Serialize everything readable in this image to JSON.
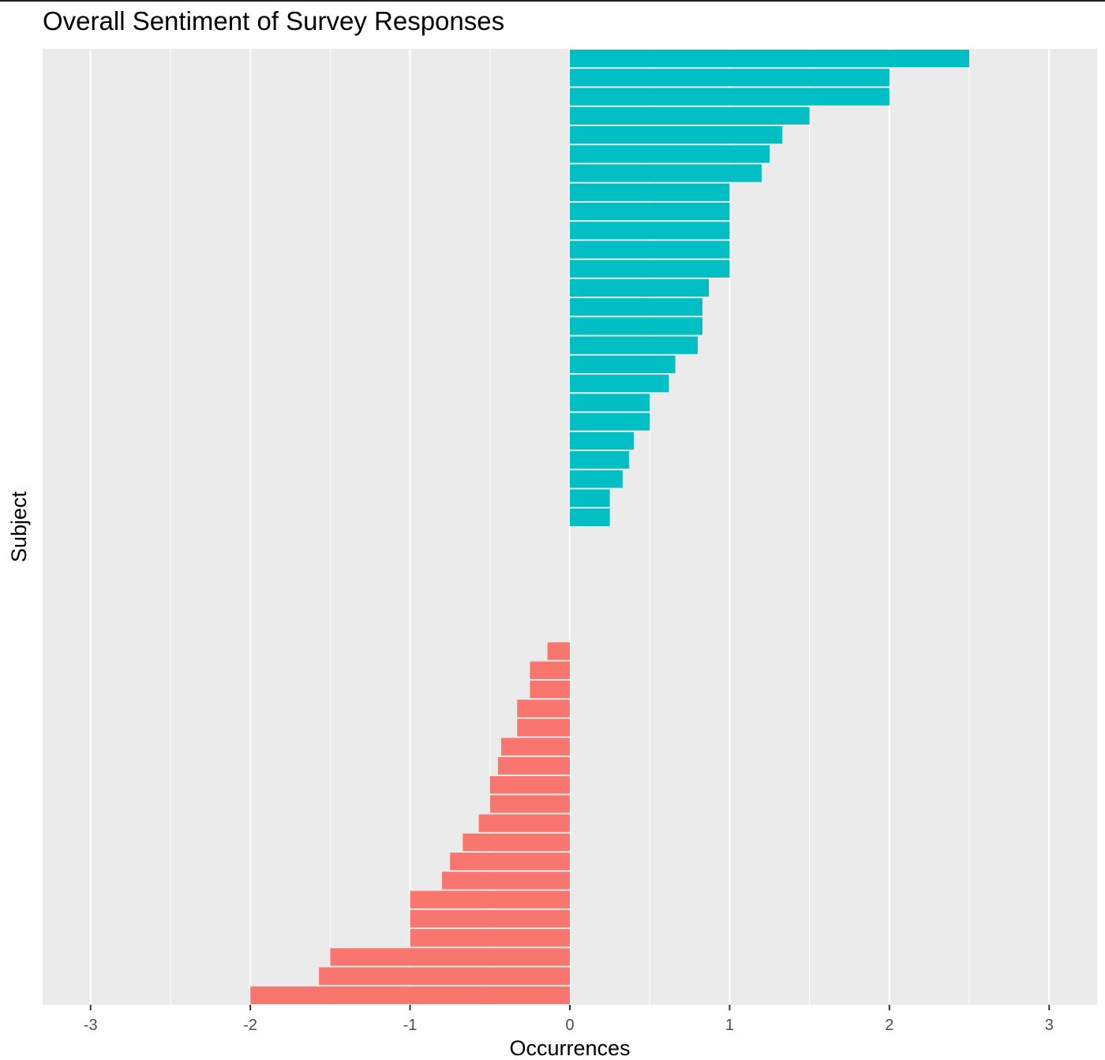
{
  "chart_data": {
    "type": "bar",
    "orientation": "horizontal",
    "title": "Overall Sentiment of Survey Responses",
    "xlabel": "Occurrences",
    "ylabel": "Subject",
    "xlim": [
      -3.3,
      3.3
    ],
    "xticks": [
      -3,
      -2,
      -1,
      0,
      1,
      2,
      3
    ],
    "xtick_labels": [
      "-3",
      "-2",
      "-1",
      "0",
      "1",
      "2",
      "3"
    ],
    "grid": true,
    "legend": "none",
    "colors": {
      "positive": "#00BFC4",
      "negative": "#F8766D",
      "panel": "#EBEBEB",
      "gridline": "#FFFFFF"
    },
    "values": [
      2.5,
      2.0,
      2.0,
      1.5,
      1.33,
      1.25,
      1.2,
      1.0,
      1.0,
      1.0,
      1.0,
      1.0,
      0.87,
      0.83,
      0.83,
      0.8,
      0.66,
      0.62,
      0.5,
      0.5,
      0.4,
      0.37,
      0.33,
      0.25,
      0.25,
      0,
      0,
      0,
      0,
      0,
      0,
      -0.14,
      -0.25,
      -0.25,
      -0.33,
      -0.33,
      -0.43,
      -0.45,
      -0.5,
      -0.5,
      -0.57,
      -0.67,
      -0.75,
      -0.8,
      -1.0,
      -1.0,
      -1.0,
      -1.5,
      -1.57,
      -2.0
    ]
  }
}
